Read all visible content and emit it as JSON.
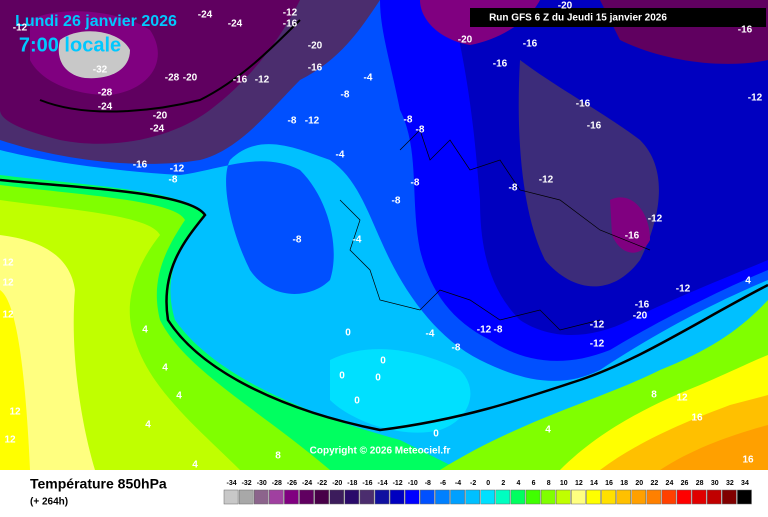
{
  "header": {
    "date": "Lundi 26 janvier 2026",
    "time": "7:00 locale",
    "run": "Run GFS 6 Z du Jeudi 15 janvier 2026",
    "copyright": "Copyright © 2026 Meteociel.fr"
  },
  "footer": {
    "title": "Température 850hPa",
    "lead": "(+ 264h)"
  },
  "legend": {
    "labels": [
      "-34",
      "-32",
      "-30",
      "-28",
      "-26",
      "-24",
      "-22",
      "-20",
      "-18",
      "-16",
      "-14",
      "-12",
      "-10",
      "-8",
      "-6",
      "-4",
      "-2",
      "0",
      "2",
      "4",
      "6",
      "8",
      "10",
      "12",
      "14",
      "16",
      "18",
      "20",
      "22",
      "24",
      "26",
      "28",
      "30",
      "32",
      "34"
    ],
    "colors": [
      "#c8c8c8",
      "#a8a8a8",
      "#8c648c",
      "#a040a0",
      "#800080",
      "#600060",
      "#480048",
      "#3c1c5c",
      "#2a0a6a",
      "#4b2d6e",
      "#1010a0",
      "#0000c0",
      "#0000ff",
      "#0050ff",
      "#0080ff",
      "#00a0ff",
      "#00c0ff",
      "#00e0ff",
      "#00ffc0",
      "#00ff60",
      "#40ff00",
      "#80ff00",
      "#c0ff00",
      "#ffff80",
      "#ffff00",
      "#ffe000",
      "#ffc000",
      "#ffa000",
      "#ff8000",
      "#ff4000",
      "#ff0000",
      "#e00000",
      "#c00000",
      "#800000",
      "#000000"
    ]
  },
  "map": {
    "contour_labels": [
      "-24",
      "-24",
      "-16",
      "-12",
      "-20",
      "-16",
      "-16",
      "-20",
      "-16",
      "-12",
      "-32",
      "-28",
      "-24",
      "-28",
      "-20",
      "-16",
      "-12",
      "-20",
      "-24",
      "-16",
      "-12",
      "-8",
      "-20",
      "-16",
      "-8",
      "-4",
      "-8",
      "-12",
      "-8",
      "-8",
      "-4",
      "-8",
      "-12",
      "-8",
      "-8",
      "-4",
      "-8",
      "-12",
      "-16",
      "-12",
      "-16",
      "-20",
      "-12",
      "-12",
      "-12",
      "-8",
      "-4",
      "-8",
      "0",
      "0",
      "0",
      "0",
      "0",
      "4",
      "4",
      "4",
      "4",
      "12",
      "12",
      "12",
      "12",
      "8",
      "4",
      "4",
      "8",
      "12",
      "16",
      "16",
      "4",
      "12",
      "-16",
      "-16",
      "-12",
      "0"
    ]
  }
}
